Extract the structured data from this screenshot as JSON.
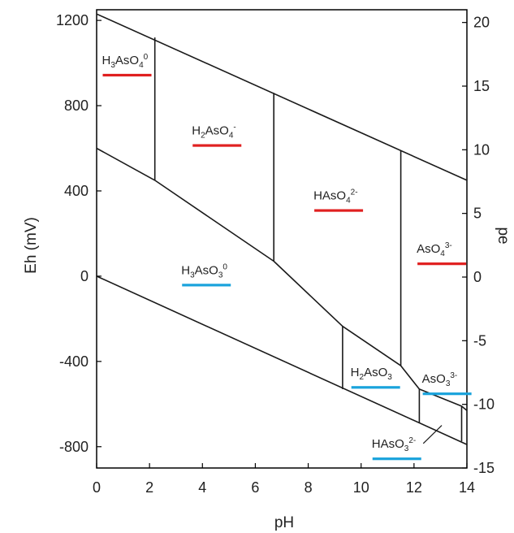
{
  "chart_data": {
    "type": "line",
    "title": "",
    "xlabel": "pH",
    "ylabel_left": "Eh (mV)",
    "ylabel_right": "pe",
    "xlim": [
      0,
      14
    ],
    "ylim_left": [
      -900,
      1250
    ],
    "ylim_right": [
      -15,
      21
    ],
    "x_ticks": [
      "0",
      "2",
      "4",
      "6",
      "8",
      "10",
      "12",
      "14"
    ],
    "y_ticks_left": [
      "-800",
      "-400",
      "0",
      "400",
      "800",
      "1200"
    ],
    "y_ticks_right": [
      "-15",
      "-10",
      "-5",
      "0",
      "5",
      "10",
      "15",
      "20"
    ],
    "boundaries": [
      {
        "name": "water-oxidation-limit",
        "points": [
          [
            0,
            1230
          ],
          [
            14,
            450
          ]
        ]
      },
      {
        "name": "water-reduction-limit",
        "points": [
          [
            0,
            0
          ],
          [
            14,
            -790
          ]
        ]
      },
      {
        "name": "arsenate-arsenite-boundary",
        "points": [
          [
            0,
            600
          ],
          [
            2.2,
            450
          ],
          [
            6.7,
            70
          ],
          [
            9.3,
            -235
          ],
          [
            11.5,
            -420
          ],
          [
            12.2,
            -530
          ],
          [
            13.8,
            -610
          ],
          [
            14,
            -630
          ]
        ]
      },
      {
        "name": "H3AsO4-H2AsO4-boundary",
        "points": [
          [
            2.2,
            1120
          ],
          [
            2.2,
            450
          ]
        ]
      },
      {
        "name": "H2AsO4-HAsO4-boundary",
        "points": [
          [
            6.7,
            860
          ],
          [
            6.7,
            70
          ]
        ]
      },
      {
        "name": "HAsO4-AsO4-boundary",
        "points": [
          [
            11.5,
            590
          ],
          [
            11.5,
            -420
          ]
        ]
      },
      {
        "name": "H3AsO3-H2AsO3-boundary",
        "points": [
          [
            9.3,
            -235
          ],
          [
            9.3,
            -530
          ]
        ]
      },
      {
        "name": "H2AsO3-HAsO3-boundary",
        "points": [
          [
            12.2,
            -530
          ],
          [
            12.2,
            -690
          ]
        ]
      },
      {
        "name": "HAsO3-AsO3-boundary",
        "points": [
          [
            13.8,
            -610
          ],
          [
            13.8,
            -775
          ]
        ]
      }
    ],
    "species": [
      {
        "base": "H",
        "sub1": "3",
        "mid": "AsO",
        "sub2": "4",
        "sup": "0",
        "pH": 0.2,
        "Eh": 995,
        "color": "#e02020"
      },
      {
        "base": "H",
        "sub1": "2",
        "mid": "AsO",
        "sub2": "4",
        "sup": "-",
        "pH": 3.6,
        "Eh": 665,
        "color": "#e02020"
      },
      {
        "base": "H",
        "sub1": "",
        "mid": "AsO",
        "sub2": "4",
        "sup": "2-",
        "pH": 8.2,
        "Eh": 360,
        "color": "#e02020"
      },
      {
        "base": "",
        "sub1": "",
        "mid": "AsO",
        "sub2": "4",
        "sup": "3-",
        "pH": 12.1,
        "Eh": 110,
        "color": "#e02020"
      },
      {
        "base": "H",
        "sub1": "3",
        "mid": "AsO",
        "sub2": "3",
        "sup": "0",
        "pH": 3.2,
        "Eh": 10,
        "color": "#1aa3dc"
      },
      {
        "base": "H",
        "sub1": "2",
        "mid": "AsO",
        "sub2": "3",
        "sup": "",
        "pH": 9.6,
        "Eh": -470,
        "color": "#1aa3dc"
      },
      {
        "base": "",
        "sub1": "",
        "mid": "AsO",
        "sub2": "3",
        "sup": "3-",
        "pH": 12.3,
        "Eh": -500,
        "color": "#1aa3dc"
      },
      {
        "base": "H",
        "sub1": "",
        "mid": "AsO",
        "sub2": "3",
        "sup": "2-",
        "pH": 10.4,
        "Eh": -805,
        "color": "#1aa3dc"
      }
    ]
  }
}
